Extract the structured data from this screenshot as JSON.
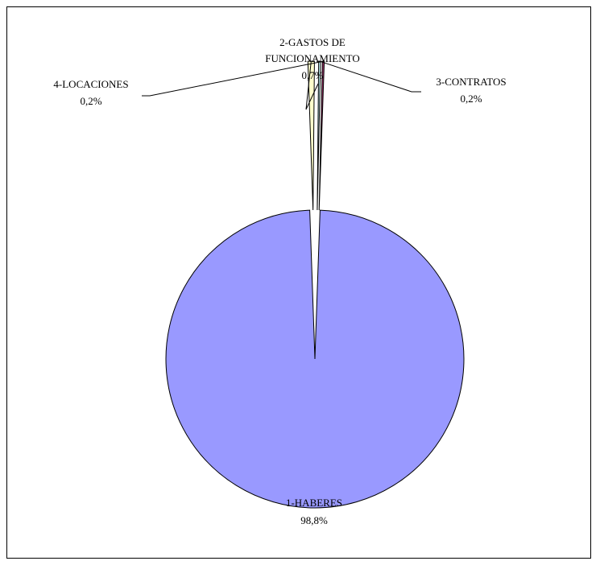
{
  "chart_data": {
    "type": "pie",
    "exploded": true,
    "slices": [
      {
        "label": "1-HABERES",
        "value": 98.8,
        "value_label": "98,8%",
        "color": "#9999ff"
      },
      {
        "label": "2-GASTOS DE FUNCIONAMIENTO",
        "label_lines": [
          "2-GASTOS DE",
          "FUNCIONAMIENTO"
        ],
        "value": 0.7,
        "value_label": "0,7%",
        "color": "#ffffcc"
      },
      {
        "label": "3-CONTRATOS",
        "value": 0.2,
        "value_label": "0,2%",
        "color": "#ccffff"
      },
      {
        "label": "4-LOCACIONES",
        "value": 0.2,
        "value_label": "0,2%",
        "color": "#993366"
      }
    ]
  }
}
